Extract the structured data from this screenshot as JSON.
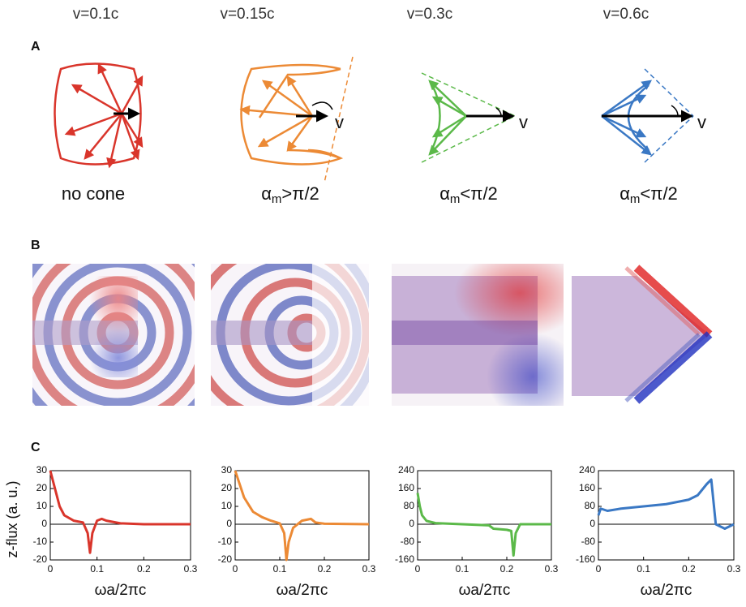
{
  "panel_labels": [
    "A",
    "B",
    "C"
  ],
  "columns": [
    {
      "velocity": "v=0.1c",
      "cone_label": {
        "text": "no cone"
      }
    },
    {
      "velocity": "v=0.15c",
      "v_label": "v",
      "cone_label": {
        "base": "α",
        "sub": "m",
        "rest": ">π/2"
      }
    },
    {
      "velocity": "v=0.3c",
      "v_label": "v",
      "cone_label": {
        "base": "α",
        "sub": "m",
        "rest": "<π/2"
      }
    },
    {
      "velocity": "v=0.6c",
      "v_label": "v",
      "cone_label": {
        "base": "α",
        "sub": "m",
        "rest": "<π/2"
      }
    }
  ],
  "chart_data": [
    {
      "type": "line",
      "y_label": "z-flux (a. u.)",
      "x_label": "ωa/2πc",
      "color": "#d9352b",
      "x": [
        0,
        0.01,
        0.02,
        0.03,
        0.05,
        0.07,
        0.08,
        0.085,
        0.09,
        0.1,
        0.11,
        0.12,
        0.15,
        0.2,
        0.3
      ],
      "values": [
        30,
        20,
        10,
        5,
        2,
        1,
        -5,
        -16,
        -5,
        2,
        3,
        2,
        0.5,
        0,
        0
      ],
      "xlim": [
        0,
        0.3
      ],
      "xticks": [
        0,
        0.1,
        0.2,
        0.3
      ],
      "ylim": [
        -20,
        30
      ],
      "yticks": [
        -20,
        -10,
        0,
        10,
        20,
        30
      ]
    },
    {
      "type": "line",
      "x_label": "ωa/2πc",
      "color": "#ec8a35",
      "x": [
        0,
        0.02,
        0.04,
        0.06,
        0.08,
        0.1,
        0.11,
        0.115,
        0.12,
        0.13,
        0.15,
        0.17,
        0.18,
        0.2,
        0.3
      ],
      "values": [
        30,
        15,
        7,
        4,
        2,
        0.5,
        -5,
        -20,
        -10,
        -2,
        2,
        3,
        1,
        0.3,
        0
      ],
      "xlim": [
        0,
        0.3
      ],
      "xticks": [
        0,
        0.1,
        0.2,
        0.3
      ],
      "ylim": [
        -20,
        30
      ],
      "yticks": [
        -20,
        -10,
        0,
        10,
        20,
        30
      ]
    },
    {
      "type": "line",
      "x_label": "ωa/2πc",
      "color": "#5bb949",
      "x": [
        0,
        0.005,
        0.01,
        0.02,
        0.04,
        0.1,
        0.16,
        0.17,
        0.2,
        0.21,
        0.215,
        0.22,
        0.23,
        0.3
      ],
      "values": [
        140,
        80,
        40,
        15,
        5,
        0,
        -5,
        -20,
        -25,
        -30,
        -140,
        -40,
        0,
        0
      ],
      "xlim": [
        0,
        0.3
      ],
      "xticks": [
        0,
        0.1,
        0.2,
        0.3
      ],
      "ylim": [
        -160,
        240
      ],
      "yticks": [
        -160,
        -80,
        0,
        80,
        160,
        240
      ]
    },
    {
      "type": "line",
      "x_label": "ωa/2πc",
      "color": "#3a78c4",
      "x": [
        0,
        0.005,
        0.02,
        0.05,
        0.1,
        0.15,
        0.2,
        0.22,
        0.24,
        0.25,
        0.255,
        0.26,
        0.27,
        0.28,
        0.29,
        0.3
      ],
      "values": [
        40,
        70,
        60,
        70,
        80,
        90,
        110,
        130,
        180,
        200,
        100,
        0,
        -10,
        -20,
        -10,
        0
      ],
      "xlim": [
        0,
        0.3
      ],
      "xticks": [
        0,
        0.1,
        0.2,
        0.3
      ],
      "ylim": [
        -160,
        240
      ],
      "yticks": [
        -160,
        -80,
        0,
        80,
        160,
        240
      ]
    }
  ]
}
